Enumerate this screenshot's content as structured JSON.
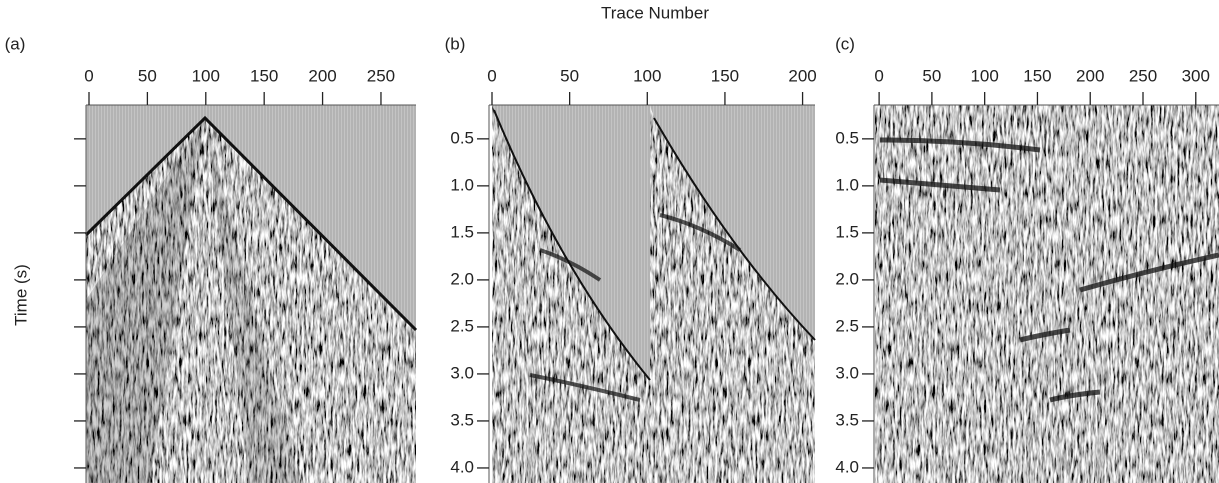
{
  "xlabel": "Trace Number",
  "ylabel": "Time (s)",
  "chart_data": [
    {
      "type": "image",
      "label": "(a)",
      "xlim": [
        0,
        280
      ],
      "xticks": [
        0,
        50,
        100,
        150,
        200,
        250
      ],
      "ylim": [
        0.14,
        4.16
      ],
      "y_inverted": true,
      "yticks": [
        0.5,
        1,
        1.5,
        2,
        2.5,
        3,
        3.5,
        4
      ],
      "ytick_labels": false
    },
    {
      "type": "image",
      "label": "(b)",
      "xlim": [
        0,
        208
      ],
      "xticks": [
        0,
        50,
        100,
        150,
        200
      ],
      "ylim": [
        0.14,
        4.16
      ],
      "y_inverted": true,
      "yticks": [
        0.5,
        {
          "value": 1,
          "label": "1.0"
        },
        1.5,
        {
          "value": 2,
          "label": "2.0"
        },
        2.5,
        {
          "value": 3,
          "label": "3.0"
        },
        3.5,
        {
          "value": 4,
          "label": "4.0"
        }
      ],
      "ytick_labels": true
    },
    {
      "type": "image",
      "label": "(c)",
      "xlim": [
        -2,
        322
      ],
      "xticks": [
        0,
        50,
        100,
        150,
        200,
        250,
        300
      ],
      "ylim": [
        0.14,
        4.16
      ],
      "y_inverted": true,
      "yticks": [
        0.5,
        {
          "value": 1,
          "label": "1.0"
        },
        1.5,
        {
          "value": 2,
          "label": "2.0"
        },
        2.5,
        {
          "value": 3,
          "label": "3.0"
        },
        3.5,
        {
          "value": 4,
          "label": "4.0"
        }
      ],
      "ytick_labels": true
    }
  ]
}
